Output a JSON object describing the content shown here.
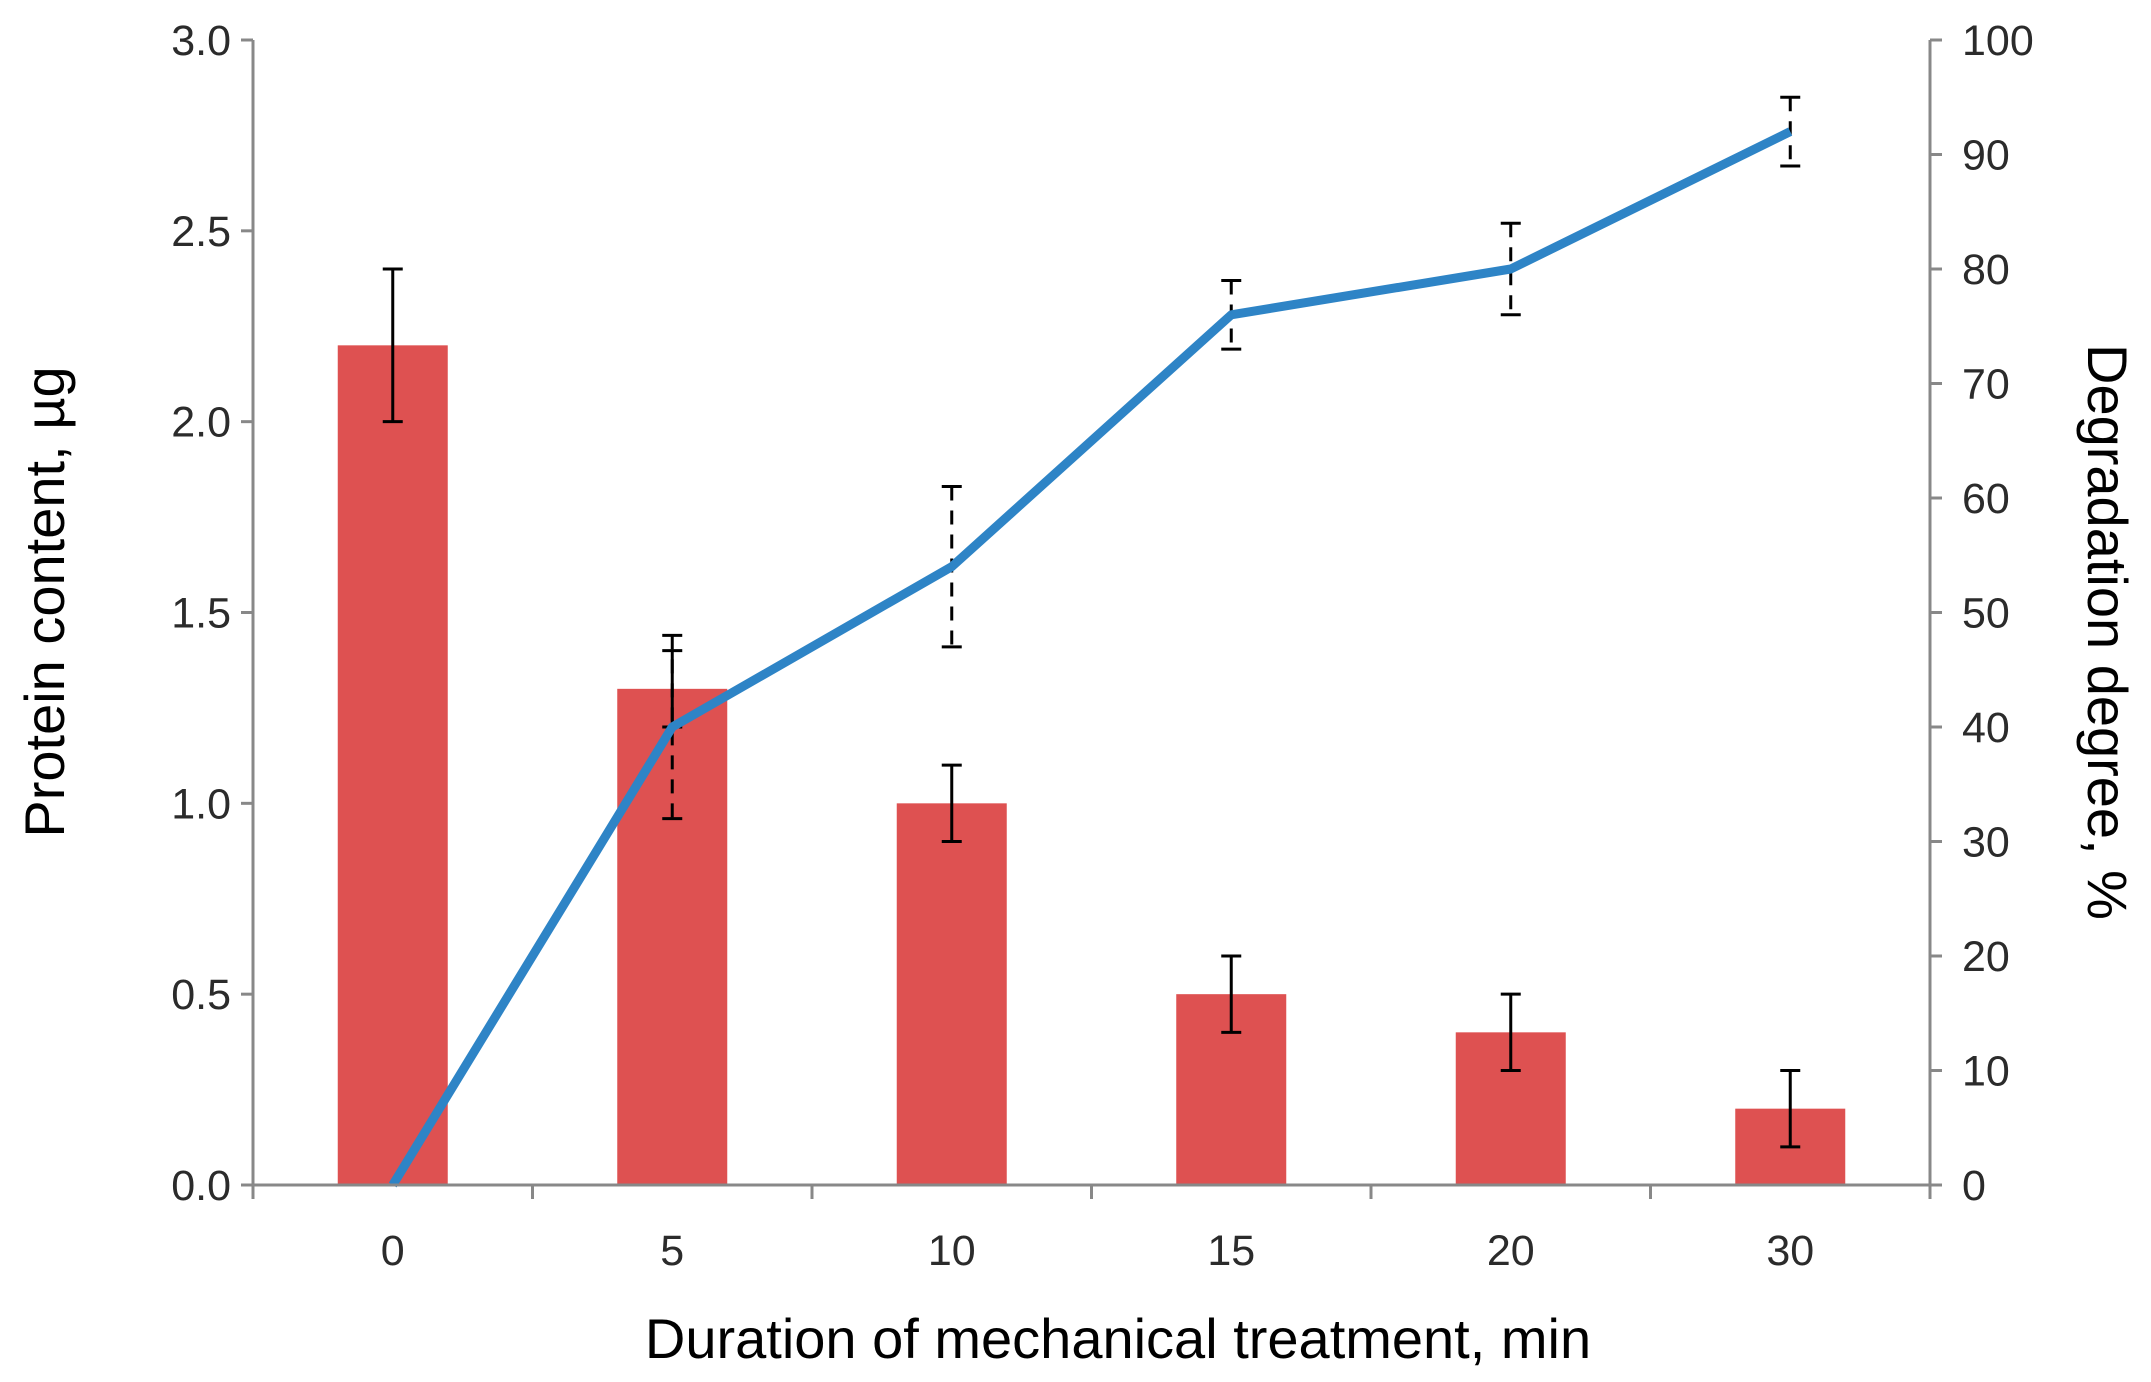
{
  "chart_data": {
    "type": "bar",
    "title": "",
    "xlabel": "Duration of mechanical treatment, min",
    "ylabel": "Protein content, µg",
    "y2label": "Degradation degree, %",
    "categories": [
      "0",
      "5",
      "10",
      "15",
      "20",
      "30"
    ],
    "ylim": [
      0,
      3.0
    ],
    "y2lim": [
      0,
      100
    ],
    "y_ticks": [
      "0.0",
      "0.5",
      "1.0",
      "1.5",
      "2.0",
      "2.5",
      "3.0"
    ],
    "y2_ticks": [
      "0",
      "10",
      "20",
      "30",
      "40",
      "50",
      "60",
      "70",
      "80",
      "90",
      "100"
    ],
    "grid": false,
    "series": [
      {
        "name": "Protein content",
        "type": "bar",
        "axis": "left",
        "color": "#de5151",
        "values": [
          2.2,
          1.3,
          1.0,
          0.5,
          0.4,
          0.2
        ],
        "errors": [
          0.2,
          0.1,
          0.1,
          0.1,
          0.1,
          0.1
        ]
      },
      {
        "name": "Degradation degree",
        "type": "line",
        "axis": "right",
        "color": "#2e84c6",
        "values": [
          0,
          40,
          54,
          76,
          80,
          92
        ],
        "errors": [
          0,
          8,
          7,
          3,
          4,
          3
        ]
      }
    ]
  }
}
